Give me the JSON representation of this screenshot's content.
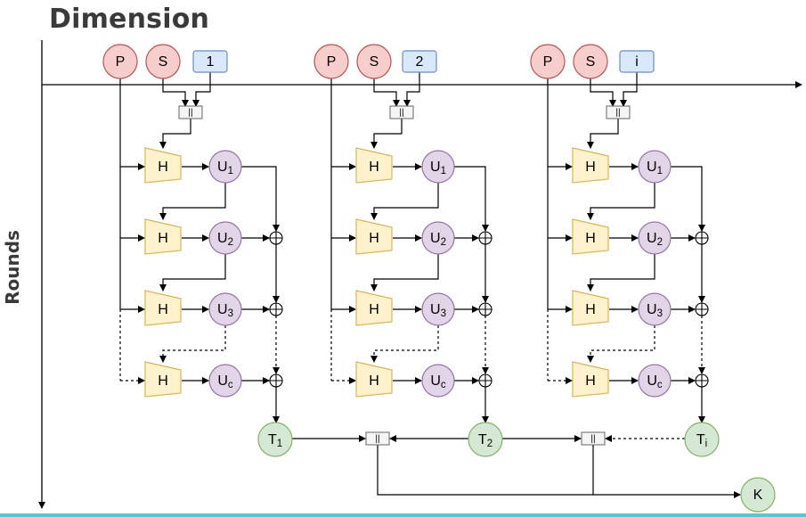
{
  "title": "Dimension",
  "y_axis_label": "Rounds",
  "colors": {
    "p_fill": "#f8cecc",
    "p_stroke": "#b85450",
    "s_fill": "#f8cecc",
    "s_stroke": "#b85450",
    "idx_fill": "#dae8fc",
    "idx_stroke": "#6c8ebf",
    "h_fill": "#fff2cc",
    "h_stroke": "#d6b656",
    "u_fill": "#e1d5e7",
    "u_stroke": "#9673a6",
    "t_fill": "#d5e8d4",
    "t_stroke": "#82b366",
    "concat_fill": "#f5f5f5",
    "concat_stroke": "#666666",
    "line": "#000000"
  },
  "columns": [
    {
      "p": "P",
      "s": "S",
      "index": "1",
      "t": "T",
      "t_sub": "1"
    },
    {
      "p": "P",
      "s": "S",
      "index": "2",
      "t": "T",
      "t_sub": "2"
    },
    {
      "p": "P",
      "s": "S",
      "index": "i",
      "t": "T",
      "t_sub": "i"
    }
  ],
  "rows": [
    {
      "h": "H",
      "u": "U",
      "u_sub": "1",
      "dashed_in": false
    },
    {
      "h": "H",
      "u": "U",
      "u_sub": "2",
      "dashed_in": false
    },
    {
      "h": "H",
      "u": "U",
      "u_sub": "3",
      "dashed_in": false
    },
    {
      "h": "H",
      "u": "U",
      "u_sub": "c",
      "dashed_in": true
    }
  ],
  "concat_symbol": "||",
  "xor_symbol": "⊕",
  "output": "K"
}
